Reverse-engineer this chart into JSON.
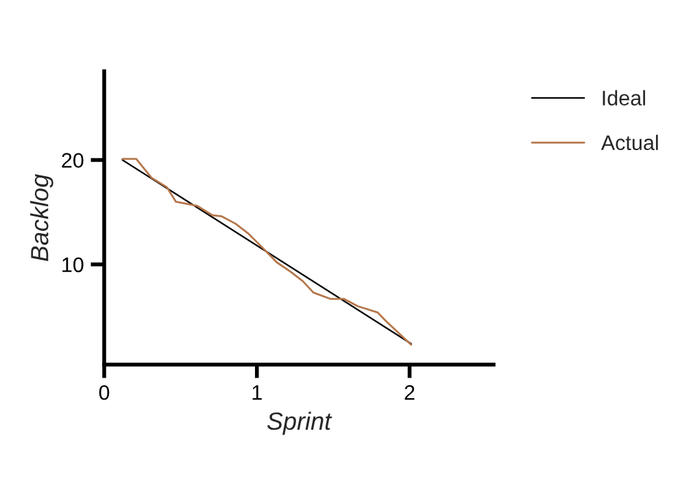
{
  "chart_data": {
    "type": "line",
    "xlabel": "Sprint",
    "ylabel": "Backlog",
    "xlim": [
      0,
      2.55
    ],
    "ylim": [
      0.4,
      28.5
    ],
    "xticks": [
      0,
      1,
      2
    ],
    "yticks": [
      10,
      20
    ],
    "grid": false,
    "legend": "top right",
    "marker": "none",
    "series": [
      {
        "name": "Ideal",
        "color": "#000000",
        "x": [
          0.12,
          2.01
        ],
        "values": [
          20.0,
          2.4
        ]
      },
      {
        "name": "Actual",
        "color": "#b5764a",
        "x": [
          0.12,
          0.21,
          0.31,
          0.41,
          0.47,
          0.61,
          0.71,
          0.77,
          0.86,
          0.94,
          1.03,
          1.13,
          1.22,
          1.3,
          1.37,
          1.48,
          1.57,
          1.66,
          1.79,
          1.85,
          1.93,
          2.01
        ],
        "values": [
          20.1,
          20.1,
          18.3,
          17.4,
          16.0,
          15.6,
          14.7,
          14.6,
          13.9,
          13.0,
          11.7,
          10.2,
          9.3,
          8.4,
          7.3,
          6.7,
          6.7,
          6.0,
          5.4,
          4.5,
          3.4,
          2.3
        ]
      }
    ]
  }
}
